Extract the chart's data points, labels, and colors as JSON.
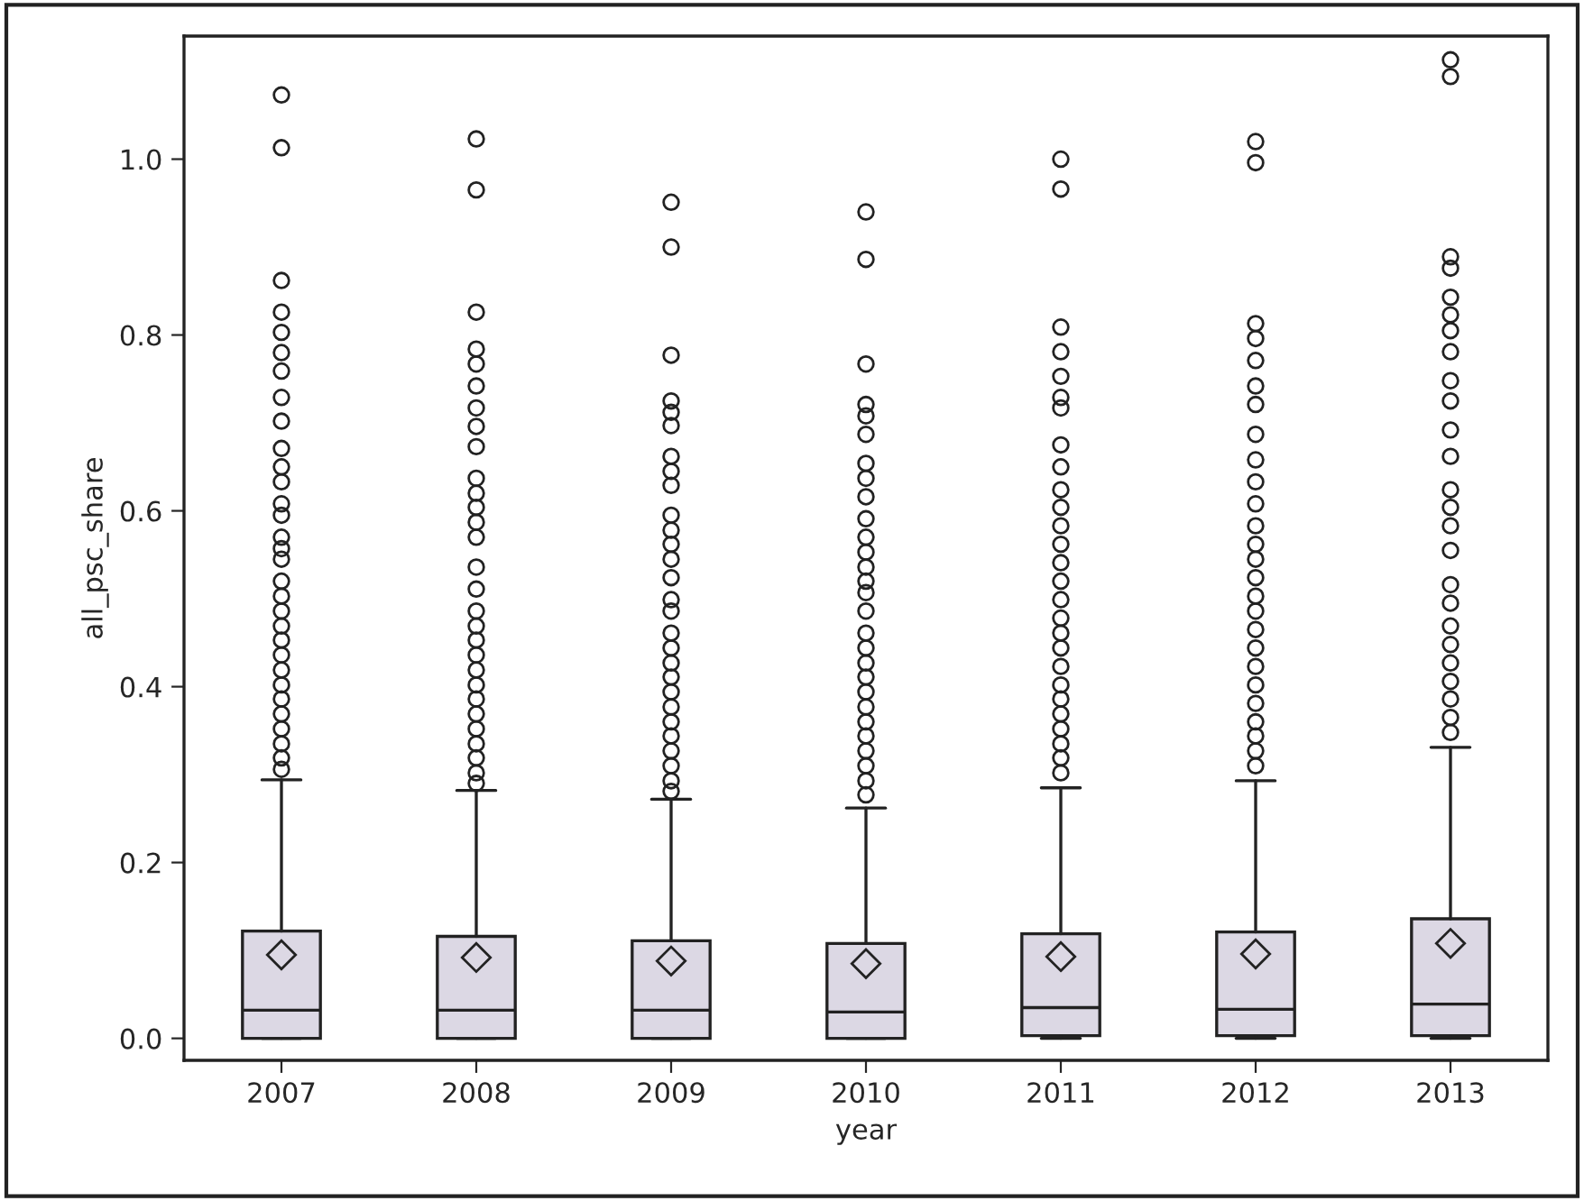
{
  "chart_data": {
    "type": "box",
    "xlabel": "year",
    "ylabel": "all_psc_share",
    "categories": [
      "2007",
      "2008",
      "2009",
      "2010",
      "2011",
      "2012",
      "2013"
    ],
    "color": "#dcd8e4",
    "ylim": [
      -0.025,
      1.14
    ],
    "yticks": [
      {
        "value": 0,
        "label": "0.0"
      },
      {
        "value": 0.2,
        "label": "0.2"
      },
      {
        "value": 0.4,
        "label": "0.4"
      },
      {
        "value": 0.6,
        "label": "0.6"
      },
      {
        "value": 0.8,
        "label": "0.8"
      },
      {
        "value": 1.0,
        "label": "1.0"
      }
    ],
    "grid": false,
    "boxes": [
      {
        "low": 0,
        "q1": 0,
        "median": 0.032,
        "q3": 0.122,
        "high": 0.294,
        "mean": 0.095,
        "outliers": [
          1.073,
          1.013,
          0.862,
          0.826,
          0.803,
          0.78,
          0.759,
          0.729,
          0.702,
          0.671,
          0.65,
          0.633,
          0.608,
          0.595,
          0.57,
          0.557,
          0.545,
          0.52,
          0.503,
          0.486,
          0.469,
          0.453,
          0.436,
          0.419,
          0.402,
          0.386,
          0.369,
          0.352,
          0.335,
          0.319,
          0.306
        ]
      },
      {
        "low": 0,
        "q1": 0,
        "median": 0.032,
        "q3": 0.116,
        "high": 0.282,
        "mean": 0.092,
        "outliers": [
          1.023,
          0.965,
          0.826,
          0.784,
          0.767,
          0.742,
          0.717,
          0.696,
          0.673,
          0.637,
          0.62,
          0.604,
          0.587,
          0.57,
          0.536,
          0.511,
          0.486,
          0.469,
          0.453,
          0.436,
          0.419,
          0.402,
          0.386,
          0.369,
          0.352,
          0.335,
          0.319,
          0.302,
          0.29
        ]
      },
      {
        "low": 0,
        "q1": 0,
        "median": 0.032,
        "q3": 0.111,
        "high": 0.272,
        "mean": 0.088,
        "outliers": [
          0.951,
          0.9,
          0.777,
          0.725,
          0.712,
          0.697,
          0.662,
          0.645,
          0.629,
          0.595,
          0.578,
          0.562,
          0.545,
          0.524,
          0.499,
          0.486,
          0.461,
          0.444,
          0.427,
          0.411,
          0.394,
          0.377,
          0.36,
          0.344,
          0.327,
          0.31,
          0.293,
          0.281
        ]
      },
      {
        "low": 0,
        "q1": 0,
        "median": 0.03,
        "q3": 0.108,
        "high": 0.262,
        "mean": 0.085,
        "outliers": [
          0.94,
          0.886,
          0.767,
          0.721,
          0.708,
          0.687,
          0.654,
          0.637,
          0.616,
          0.591,
          0.57,
          0.553,
          0.536,
          0.52,
          0.507,
          0.486,
          0.461,
          0.444,
          0.427,
          0.411,
          0.394,
          0.377,
          0.36,
          0.344,
          0.327,
          0.31,
          0.293,
          0.277
        ]
      },
      {
        "low": 0,
        "q1": 0.003,
        "median": 0.035,
        "q3": 0.119,
        "high": 0.285,
        "mean": 0.093,
        "outliers": [
          1.0,
          0.966,
          0.809,
          0.781,
          0.753,
          0.729,
          0.717,
          0.675,
          0.65,
          0.624,
          0.604,
          0.583,
          0.562,
          0.541,
          0.52,
          0.499,
          0.478,
          0.461,
          0.444,
          0.423,
          0.402,
          0.386,
          0.369,
          0.352,
          0.335,
          0.319,
          0.302
        ]
      },
      {
        "low": 0,
        "q1": 0.003,
        "median": 0.033,
        "q3": 0.121,
        "high": 0.293,
        "mean": 0.096,
        "outliers": [
          1.02,
          0.996,
          0.813,
          0.796,
          0.771,
          0.742,
          0.721,
          0.687,
          0.658,
          0.633,
          0.608,
          0.583,
          0.562,
          0.545,
          0.524,
          0.503,
          0.486,
          0.465,
          0.444,
          0.423,
          0.402,
          0.381,
          0.36,
          0.344,
          0.327,
          0.31
        ]
      },
      {
        "low": 0,
        "q1": 0.003,
        "median": 0.039,
        "q3": 0.136,
        "high": 0.331,
        "mean": 0.108,
        "outliers": [
          1.113,
          1.094,
          0.889,
          0.876,
          0.843,
          0.823,
          0.805,
          0.781,
          0.748,
          0.725,
          0.692,
          0.662,
          0.624,
          0.604,
          0.583,
          0.555,
          0.516,
          0.495,
          0.469,
          0.448,
          0.427,
          0.406,
          0.386,
          0.365,
          0.348
        ]
      }
    ]
  }
}
